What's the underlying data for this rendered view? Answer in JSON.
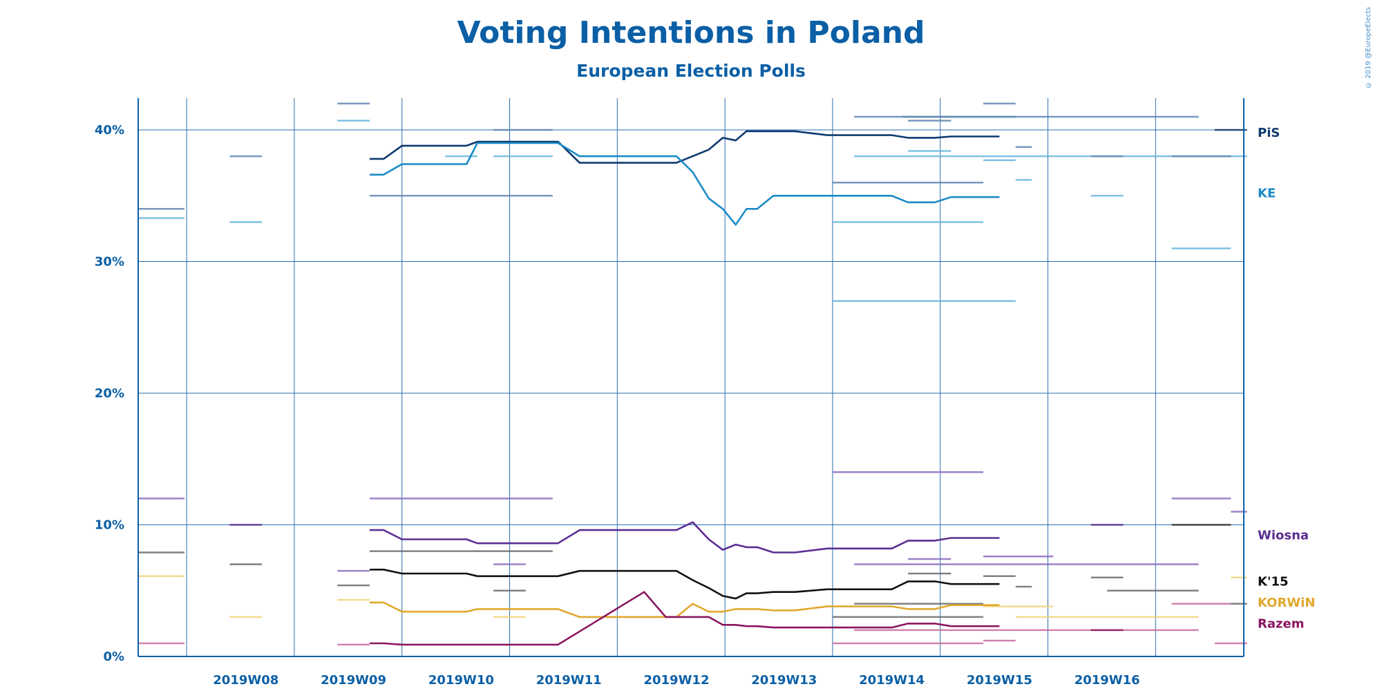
{
  "credit": "© 2019 @EuropeElects",
  "chart_data": {
    "type": "line",
    "title": "Voting Intentions in Poland",
    "subtitle": "European Election Polls",
    "y_unit": "%",
    "ylim": [
      0,
      40
    ],
    "yticks": [
      {
        "value": 0,
        "label": "0%"
      },
      {
        "value": 10,
        "label": "10%"
      },
      {
        "value": 20,
        "label": "20%"
      },
      {
        "value": 30,
        "label": "30%"
      },
      {
        "value": 40,
        "label": "40%"
      }
    ],
    "xlim": [
      0,
      10.3
    ],
    "xticks": [
      {
        "value": 1,
        "label": "2019W08"
      },
      {
        "value": 2,
        "label": "2019W09"
      },
      {
        "value": 3,
        "label": "2019W10"
      },
      {
        "value": 4,
        "label": "2019W11"
      },
      {
        "value": 5,
        "label": "2019W12"
      },
      {
        "value": 6,
        "label": "2019W13"
      },
      {
        "value": 7,
        "label": "2019W14"
      },
      {
        "value": 8,
        "label": "2019W15"
      },
      {
        "value": 9,
        "label": "2019W16"
      }
    ],
    "grid": true,
    "series": [
      {
        "name": "PiS",
        "color": "#0e3a6e",
        "x": [
          2.15,
          2.28,
          2.45,
          2.6,
          2.9,
          3.05,
          3.15,
          3.3,
          3.5,
          3.7,
          3.9,
          4.1,
          4.3,
          4.5,
          4.7,
          4.9,
          5.0,
          5.15,
          5.3,
          5.43,
          5.55,
          5.65,
          5.75,
          5.9,
          6.1,
          6.4,
          6.7,
          7.0,
          7.15,
          7.4,
          7.55,
          7.7,
          8.0
        ],
        "y": [
          37.8,
          37.8,
          38.8,
          38.8,
          38.8,
          38.8,
          39.1,
          39.1,
          39.1,
          39.1,
          39.1,
          37.5,
          37.5,
          37.5,
          37.5,
          37.5,
          37.5,
          38.0,
          38.5,
          39.4,
          39.2,
          39.9,
          39.9,
          39.9,
          39.9,
          39.6,
          39.6,
          39.6,
          39.4,
          39.4,
          39.5,
          39.5,
          39.5
        ]
      },
      {
        "name": "KE",
        "color": "#1a8ac6",
        "x": [
          2.15,
          2.28,
          2.45,
          2.6,
          2.9,
          3.05,
          3.15,
          3.3,
          3.5,
          3.7,
          3.9,
          4.1,
          4.3,
          4.5,
          4.7,
          4.9,
          5.0,
          5.15,
          5.3,
          5.43,
          5.55,
          5.65,
          5.75,
          5.9,
          6.1,
          6.4,
          6.7,
          7.0,
          7.15,
          7.4,
          7.55,
          7.7,
          8.0
        ],
        "y": [
          36.6,
          36.6,
          37.4,
          37.4,
          37.4,
          37.4,
          39.0,
          39.0,
          39.0,
          39.0,
          39.0,
          38.0,
          38.0,
          38.0,
          38.0,
          38.0,
          38.0,
          36.8,
          34.8,
          34.0,
          32.8,
          34.0,
          34.0,
          35.0,
          35.0,
          35.0,
          35.0,
          35.0,
          34.5,
          34.5,
          34.9,
          34.9,
          34.9
        ]
      },
      {
        "name": "Wiosna",
        "color": "#5a2d91",
        "x": [
          2.15,
          2.28,
          2.45,
          2.6,
          2.9,
          3.05,
          3.15,
          3.3,
          3.5,
          3.7,
          3.9,
          4.1,
          4.3,
          4.5,
          4.7,
          4.9,
          5.0,
          5.15,
          5.3,
          5.43,
          5.55,
          5.65,
          5.75,
          5.9,
          6.1,
          6.4,
          6.7,
          7.0,
          7.15,
          7.4,
          7.55,
          7.7,
          8.0
        ],
        "y": [
          9.6,
          9.6,
          8.9,
          8.9,
          8.9,
          8.9,
          8.6,
          8.6,
          8.6,
          8.6,
          8.6,
          9.6,
          9.6,
          9.6,
          9.6,
          9.6,
          9.6,
          10.2,
          8.9,
          8.1,
          8.5,
          8.3,
          8.3,
          7.9,
          7.9,
          8.2,
          8.2,
          8.2,
          8.8,
          8.8,
          9.0,
          9.0,
          9.0
        ]
      },
      {
        "name": "K'15",
        "color": "#111111",
        "x": [
          2.15,
          2.28,
          2.45,
          2.6,
          2.9,
          3.05,
          3.15,
          3.3,
          3.5,
          3.7,
          3.9,
          4.1,
          4.3,
          4.5,
          4.7,
          4.9,
          5.0,
          5.15,
          5.3,
          5.43,
          5.55,
          5.65,
          5.75,
          5.9,
          6.1,
          6.4,
          6.7,
          7.0,
          7.15,
          7.4,
          7.55,
          7.7,
          8.0
        ],
        "y": [
          6.6,
          6.6,
          6.3,
          6.3,
          6.3,
          6.3,
          6.1,
          6.1,
          6.1,
          6.1,
          6.1,
          6.5,
          6.5,
          6.5,
          6.5,
          6.5,
          6.5,
          5.8,
          5.2,
          4.6,
          4.4,
          4.8,
          4.8,
          4.9,
          4.9,
          5.1,
          5.1,
          5.1,
          5.7,
          5.7,
          5.5,
          5.5,
          5.5
        ]
      },
      {
        "name": "KORWiN",
        "color": "#e0a82e",
        "x": [
          2.15,
          2.28,
          2.45,
          2.6,
          2.9,
          3.05,
          3.15,
          3.3,
          3.5,
          3.7,
          3.9,
          4.1,
          4.3,
          4.5,
          4.7,
          4.9,
          5.0,
          5.15,
          5.3,
          5.43,
          5.55,
          5.65,
          5.75,
          5.9,
          6.1,
          6.4,
          6.7,
          7.0,
          7.15,
          7.4,
          7.55,
          7.7,
          8.0
        ],
        "y": [
          4.1,
          4.1,
          3.4,
          3.4,
          3.4,
          3.4,
          3.6,
          3.6,
          3.6,
          3.6,
          3.6,
          3.0,
          3.0,
          3.0,
          3.0,
          3.0,
          3.0,
          4.0,
          3.4,
          3.4,
          3.6,
          3.6,
          3.6,
          3.5,
          3.5,
          3.8,
          3.8,
          3.8,
          3.6,
          3.6,
          3.9,
          3.9,
          3.9
        ]
      },
      {
        "name": "Razem",
        "color": "#8a1661",
        "x": [
          2.15,
          2.28,
          2.45,
          2.6,
          2.9,
          3.05,
          3.15,
          3.3,
          3.5,
          3.7,
          3.9,
          4.1,
          4.3,
          4.5,
          4.7,
          4.9,
          5.0,
          5.15,
          5.3,
          5.43,
          5.55,
          5.65,
          5.75,
          5.9,
          6.1,
          6.4,
          6.7,
          7.0,
          7.15,
          7.4,
          7.55,
          7.7,
          8.0
        ],
        "y": [
          1.0,
          1.0,
          0.9,
          0.9,
          0.9,
          0.9,
          0.9,
          0.9,
          0.9,
          0.9,
          0.9,
          1.9,
          2.9,
          3.9,
          4.9,
          3.0,
          3.0,
          3.0,
          3.0,
          2.4,
          2.4,
          2.3,
          2.3,
          2.2,
          2.2,
          2.2,
          2.2,
          2.2,
          2.5,
          2.5,
          2.3,
          2.3,
          2.3
        ]
      }
    ],
    "polls": [
      {
        "x1": 0.0,
        "x2": 0.43,
        "y": 34.0,
        "color": "#5f86b3"
      },
      {
        "x1": 0.0,
        "x2": 0.43,
        "y": 33.3,
        "color": "#66b7dd"
      },
      {
        "x1": 0.0,
        "x2": 0.43,
        "y": 12.0,
        "color": "#8a6cbf"
      },
      {
        "x1": 0.0,
        "x2": 0.43,
        "y": 7.9,
        "color": "#6b6b6b"
      },
      {
        "x1": 0.0,
        "x2": 0.43,
        "y": 6.1,
        "color": "#f0d37a"
      },
      {
        "x1": 0.0,
        "x2": 0.43,
        "y": 1.0,
        "color": "#c86b9f"
      },
      {
        "x1": 0.85,
        "x2": 1.15,
        "y": 38.0,
        "color": "#5f86b3"
      },
      {
        "x1": 0.85,
        "x2": 1.15,
        "y": 33.0,
        "color": "#66b7dd"
      },
      {
        "x1": 0.85,
        "x2": 1.15,
        "y": 10.0,
        "color": "#5a2d91"
      },
      {
        "x1": 0.85,
        "x2": 1.15,
        "y": 7.0,
        "color": "#6b6b6b"
      },
      {
        "x1": 0.85,
        "x2": 1.15,
        "y": 3.0,
        "color": "#f0d37a"
      },
      {
        "x1": 1.85,
        "x2": 2.15,
        "y": 42.0,
        "color": "#5f86b3"
      },
      {
        "x1": 1.85,
        "x2": 2.15,
        "y": 40.7,
        "color": "#66b7dd"
      },
      {
        "x1": 1.85,
        "x2": 2.15,
        "y": 6.5,
        "color": "#8a6cbf"
      },
      {
        "x1": 1.85,
        "x2": 2.15,
        "y": 5.4,
        "color": "#6b6b6b"
      },
      {
        "x1": 1.85,
        "x2": 2.15,
        "y": 4.3,
        "color": "#f0d37a"
      },
      {
        "x1": 1.85,
        "x2": 2.15,
        "y": 0.9,
        "color": "#c86b9f"
      },
      {
        "x1": 2.85,
        "x2": 3.15,
        "y": 38.0,
        "color": "#66b7dd"
      },
      {
        "x1": 2.15,
        "x2": 3.85,
        "y": 35.0,
        "color": "#5f86b3"
      },
      {
        "x1": 2.15,
        "x2": 3.85,
        "y": 12.0,
        "color": "#8a6cbf"
      },
      {
        "x1": 2.15,
        "x2": 3.85,
        "y": 8.0,
        "color": "#6b6b6b"
      },
      {
        "x1": 3.3,
        "x2": 3.85,
        "y": 40.0,
        "color": "#5f86b3"
      },
      {
        "x1": 3.3,
        "x2": 3.85,
        "y": 38.0,
        "color": "#66b7dd"
      },
      {
        "x1": 3.3,
        "x2": 3.6,
        "y": 7.0,
        "color": "#8a6cbf"
      },
      {
        "x1": 3.3,
        "x2": 3.6,
        "y": 5.0,
        "color": "#6b6b6b"
      },
      {
        "x1": 3.3,
        "x2": 3.6,
        "y": 3.0,
        "color": "#f0d37a"
      },
      {
        "x1": 6.65,
        "x2": 9.85,
        "y": 41.0,
        "color": "#5f86b3"
      },
      {
        "x1": 6.65,
        "x2": 10.3,
        "y": 38.0,
        "color": "#66b7dd"
      },
      {
        "x1": 6.65,
        "x2": 9.85,
        "y": 7.0,
        "color": "#8a6cbf"
      },
      {
        "x1": 6.65,
        "x2": 9.85,
        "y": 2.0,
        "color": "#c86b9f"
      },
      {
        "x1": 6.65,
        "x2": 7.85,
        "y": 4.0,
        "color": "#6b6b6b"
      },
      {
        "x1": 7.1,
        "x2": 8.15,
        "y": 41.0,
        "color": "#5f86b3"
      },
      {
        "x1": 7.15,
        "x2": 7.55,
        "y": 40.7,
        "color": "#5f86b3"
      },
      {
        "x1": 7.15,
        "x2": 7.55,
        "y": 38.4,
        "color": "#66b7dd"
      },
      {
        "x1": 7.15,
        "x2": 7.55,
        "y": 7.4,
        "color": "#8a6cbf"
      },
      {
        "x1": 7.15,
        "x2": 7.55,
        "y": 6.3,
        "color": "#6b6b6b"
      },
      {
        "x1": 6.45,
        "x2": 7.85,
        "y": 36.0,
        "color": "#5f86b3"
      },
      {
        "x1": 6.45,
        "x2": 7.85,
        "y": 33.0,
        "color": "#66b7dd"
      },
      {
        "x1": 6.45,
        "x2": 8.15,
        "y": 27.0,
        "color": "#66b7dd"
      },
      {
        "x1": 6.45,
        "x2": 7.85,
        "y": 14.0,
        "color": "#8a6cbf"
      },
      {
        "x1": 6.45,
        "x2": 7.85,
        "y": 3.0,
        "color": "#6b6b6b"
      },
      {
        "x1": 6.45,
        "x2": 7.85,
        "y": 1.0,
        "color": "#c86b9f"
      },
      {
        "x1": 7.85,
        "x2": 8.15,
        "y": 42.0,
        "color": "#5f86b3"
      },
      {
        "x1": 7.85,
        "x2": 8.15,
        "y": 37.7,
        "color": "#66b7dd"
      },
      {
        "x1": 7.85,
        "x2": 8.5,
        "y": 7.6,
        "color": "#8a6cbf"
      },
      {
        "x1": 7.85,
        "x2": 8.15,
        "y": 6.1,
        "color": "#6b6b6b"
      },
      {
        "x1": 7.85,
        "x2": 8.5,
        "y": 3.8,
        "color": "#f0d37a"
      },
      {
        "x1": 7.85,
        "x2": 8.15,
        "y": 1.2,
        "color": "#c86b9f"
      },
      {
        "x1": 8.15,
        "x2": 8.3,
        "y": 38.7,
        "color": "#5f86b3"
      },
      {
        "x1": 8.15,
        "x2": 8.3,
        "y": 36.2,
        "color": "#66b7dd"
      },
      {
        "x1": 8.15,
        "x2": 8.3,
        "y": 5.3,
        "color": "#6b6b6b"
      },
      {
        "x1": 8.15,
        "x2": 9.85,
        "y": 3.0,
        "color": "#f0d37a"
      },
      {
        "x1": 8.85,
        "x2": 9.15,
        "y": 38.0,
        "color": "#5f86b3"
      },
      {
        "x1": 8.85,
        "x2": 9.15,
        "y": 35.0,
        "color": "#66b7dd"
      },
      {
        "x1": 8.85,
        "x2": 9.15,
        "y": 10.0,
        "color": "#5a2d91"
      },
      {
        "x1": 8.85,
        "x2": 9.15,
        "y": 6.0,
        "color": "#6b6b6b"
      },
      {
        "x1": 8.85,
        "x2": 9.15,
        "y": 2.0,
        "color": "#8a1661"
      },
      {
        "x1": 9.6,
        "x2": 10.15,
        "y": 38.0,
        "color": "#5f86b3"
      },
      {
        "x1": 9.6,
        "x2": 10.15,
        "y": 31.0,
        "color": "#66b7dd"
      },
      {
        "x1": 9.6,
        "x2": 10.15,
        "y": 12.0,
        "color": "#8a6cbf"
      },
      {
        "x1": 9.6,
        "x2": 10.15,
        "y": 10.0,
        "color": "#333333"
      },
      {
        "x1": 9.6,
        "x2": 10.15,
        "y": 4.0,
        "color": "#c86b9f"
      },
      {
        "x1": 9.0,
        "x2": 9.85,
        "y": 5.0,
        "color": "#6b6b6b"
      },
      {
        "x1": 10.0,
        "x2": 10.3,
        "y": 40.0,
        "color": "#0e3a6e"
      },
      {
        "x1": 10.15,
        "x2": 10.3,
        "y": 11.0,
        "color": "#8a6cbf"
      },
      {
        "x1": 10.15,
        "x2": 10.3,
        "y": 6.0,
        "color": "#f0d37a"
      },
      {
        "x1": 10.15,
        "x2": 10.3,
        "y": 4.0,
        "color": "#6b6b6b"
      },
      {
        "x1": 10.0,
        "x2": 10.3,
        "y": 1.0,
        "color": "#c86b9f"
      }
    ],
    "party_labels": [
      {
        "text": "PiS",
        "y": 39.8,
        "color": "#0e3a6e"
      },
      {
        "text": "KE",
        "y": 35.2,
        "color": "#1a8ac6"
      },
      {
        "text": "Wiosna",
        "y": 9.2,
        "color": "#5a2d91"
      },
      {
        "text": "K'15",
        "y": 5.7,
        "color": "#111111"
      },
      {
        "text": "KORWiN",
        "y": 4.1,
        "color": "#e0a82e"
      },
      {
        "text": "Razem",
        "y": 2.5,
        "color": "#8a1661"
      }
    ]
  }
}
